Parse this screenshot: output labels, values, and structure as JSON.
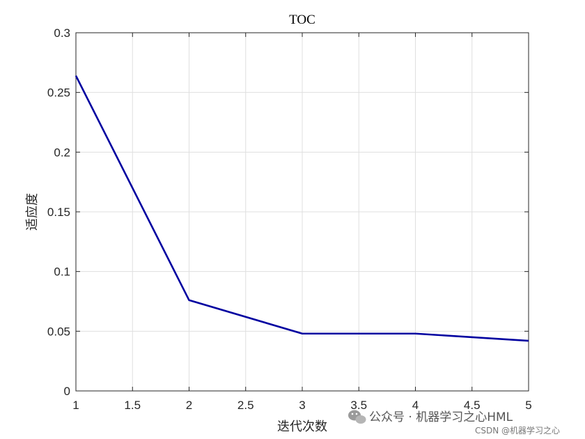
{
  "chart_data": {
    "type": "line",
    "title": "TOC",
    "xlabel": "迭代次数",
    "ylabel": "适应度",
    "xlim": [
      1,
      5
    ],
    "ylim": [
      0,
      0.3
    ],
    "xticks": [
      "1",
      "1.5",
      "2",
      "2.5",
      "3",
      "3.5",
      "4",
      "4.5",
      "5"
    ],
    "yticks": [
      "0",
      "0.05",
      "0.1",
      "0.15",
      "0.2",
      "0.25",
      "0.3"
    ],
    "grid": true,
    "series": [
      {
        "x": [
          1,
          2,
          3,
          4,
          5
        ],
        "values": [
          0.264,
          0.076,
          0.048,
          0.048,
          0.042
        ],
        "color": "#0000a0"
      }
    ]
  },
  "watermark": {
    "main": "公众号 · 机器学习之心HML",
    "sub": "CSDN @机器学习之心"
  }
}
